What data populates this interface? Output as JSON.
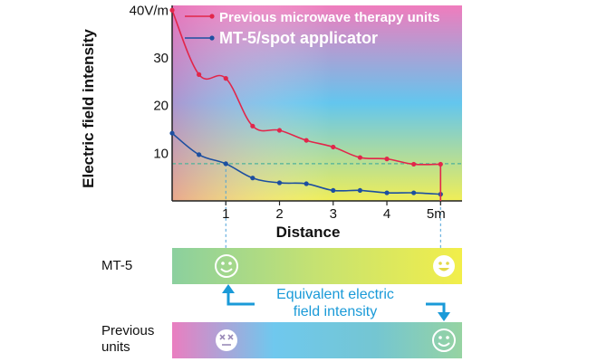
{
  "chart_data": {
    "type": "line",
    "ylabel": "Electric field intensity",
    "xlabel": "Distance",
    "y_ticks": [
      "40V/m",
      "30",
      "20",
      "10"
    ],
    "y_tick_values": [
      40,
      30,
      20,
      10
    ],
    "x_ticks": [
      "1",
      "2",
      "3",
      "4",
      "5m"
    ],
    "x_tick_values": [
      1,
      2,
      3,
      4,
      5
    ],
    "xlim": [
      0,
      5.4
    ],
    "ylim": [
      0,
      41
    ],
    "reference_line_y": 7.8,
    "series": [
      {
        "name": "Previous microwave therapy units",
        "color": "#e2264a",
        "x": [
          0,
          0.5,
          1,
          1.5,
          2,
          2.5,
          3,
          3.5,
          4,
          4.5,
          5
        ],
        "y": [
          40,
          26.5,
          25.7,
          15.7,
          14.8,
          12.7,
          11.3,
          9.1,
          8.8,
          7.7,
          7.7
        ]
      },
      {
        "name": "MT-5/spot applicator",
        "color": "#1d4fa0",
        "x": [
          0,
          0.5,
          1,
          1.5,
          2,
          2.5,
          3,
          3.5,
          4,
          4.5,
          5
        ],
        "y": [
          14.2,
          9.7,
          7.8,
          4.8,
          3.8,
          3.6,
          2.2,
          2.2,
          1.7,
          1.7,
          1.4
        ]
      }
    ]
  },
  "comparison": {
    "mt5_label": "MT-5",
    "previous_label_line1": "Previous",
    "previous_label_line2": "units",
    "annotation_line1": "Equivalent electric",
    "annotation_line2": "field intensity",
    "annotation_color": "#1a9ad8",
    "mt5_icons": [
      "smile-face-icon",
      "smile-face-icon"
    ],
    "previous_icons": [
      "dizzy-face-icon",
      "smile-face-icon"
    ]
  }
}
